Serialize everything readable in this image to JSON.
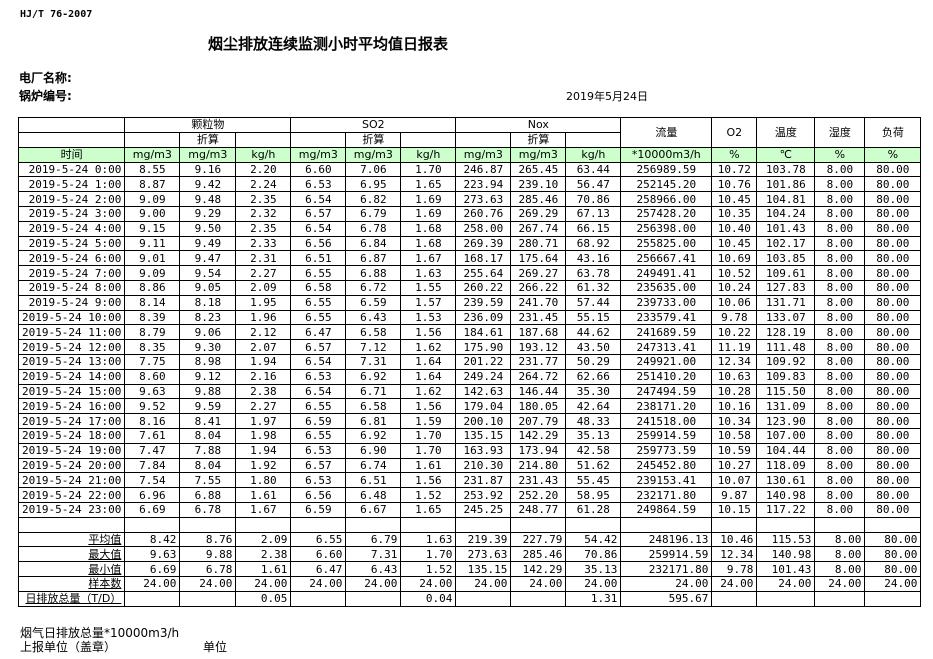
{
  "header": {
    "standard": "HJ/T  76-2007",
    "title": "烟尘排放连续监测小时平均值日报表",
    "plant_label": "电厂名称:",
    "boiler_label": "锅炉编号:",
    "date": "2019年5月24日"
  },
  "table": {
    "groups": {
      "particulate": "颗粒物",
      "so2": "SO2",
      "nox": "Nox",
      "flow": "流量",
      "o2": "O2",
      "temp": "温度",
      "humidity": "湿度",
      "load": "负荷"
    },
    "converted": "折算",
    "units": [
      "时间",
      "mg/m3",
      "mg/m3",
      "kg/h",
      "mg/m3",
      "mg/m3",
      "kg/h",
      "mg/m3",
      "mg/m3",
      "kg/h",
      "*10000m3/h",
      "%",
      "℃",
      "%",
      "%"
    ],
    "rows": [
      [
        "2019-5-24 0:00",
        "8.55",
        "9.16",
        "2.20",
        "6.60",
        "7.06",
        "1.70",
        "246.87",
        "265.45",
        "63.44",
        "256989.59",
        "10.72",
        "103.78",
        "8.00",
        "80.00"
      ],
      [
        "2019-5-24 1:00",
        "8.87",
        "9.42",
        "2.24",
        "6.53",
        "6.95",
        "1.65",
        "223.94",
        "239.10",
        "56.47",
        "252145.20",
        "10.76",
        "101.86",
        "8.00",
        "80.00"
      ],
      [
        "2019-5-24 2:00",
        "9.09",
        "9.48",
        "2.35",
        "6.54",
        "6.82",
        "1.69",
        "273.63",
        "285.46",
        "70.86",
        "258966.00",
        "10.45",
        "104.81",
        "8.00",
        "80.00"
      ],
      [
        "2019-5-24 3:00",
        "9.00",
        "9.29",
        "2.32",
        "6.57",
        "6.79",
        "1.69",
        "260.76",
        "269.29",
        "67.13",
        "257428.20",
        "10.35",
        "104.24",
        "8.00",
        "80.00"
      ],
      [
        "2019-5-24 4:00",
        "9.15",
        "9.50",
        "2.35",
        "6.54",
        "6.78",
        "1.68",
        "258.00",
        "267.74",
        "66.15",
        "256398.00",
        "10.40",
        "101.43",
        "8.00",
        "80.00"
      ],
      [
        "2019-5-24 5:00",
        "9.11",
        "9.49",
        "2.33",
        "6.56",
        "6.84",
        "1.68",
        "269.39",
        "280.71",
        "68.92",
        "255825.00",
        "10.45",
        "102.17",
        "8.00",
        "80.00"
      ],
      [
        "2019-5-24 6:00",
        "9.01",
        "9.47",
        "2.31",
        "6.51",
        "6.87",
        "1.67",
        "168.17",
        "175.64",
        "43.16",
        "256667.41",
        "10.69",
        "103.85",
        "8.00",
        "80.00"
      ],
      [
        "2019-5-24 7:00",
        "9.09",
        "9.54",
        "2.27",
        "6.55",
        "6.88",
        "1.63",
        "255.64",
        "269.27",
        "63.78",
        "249491.41",
        "10.52",
        "109.61",
        "8.00",
        "80.00"
      ],
      [
        "2019-5-24 8:00",
        "8.86",
        "9.05",
        "2.09",
        "6.58",
        "6.72",
        "1.55",
        "260.22",
        "266.22",
        "61.32",
        "235635.00",
        "10.24",
        "127.83",
        "8.00",
        "80.00"
      ],
      [
        "2019-5-24 9:00",
        "8.14",
        "8.18",
        "1.95",
        "6.55",
        "6.59",
        "1.57",
        "239.59",
        "241.70",
        "57.44",
        "239733.00",
        "10.06",
        "131.71",
        "8.00",
        "80.00"
      ],
      [
        "2019-5-24 10:00",
        "8.39",
        "8.23",
        "1.96",
        "6.55",
        "6.43",
        "1.53",
        "236.09",
        "231.45",
        "55.15",
        "233579.41",
        "9.78",
        "133.07",
        "8.00",
        "80.00"
      ],
      [
        "2019-5-24 11:00",
        "8.79",
        "9.06",
        "2.12",
        "6.47",
        "6.58",
        "1.56",
        "184.61",
        "187.68",
        "44.62",
        "241689.59",
        "10.22",
        "128.19",
        "8.00",
        "80.00"
      ],
      [
        "2019-5-24 12:00",
        "8.35",
        "9.30",
        "2.07",
        "6.57",
        "7.12",
        "1.62",
        "175.90",
        "193.12",
        "43.50",
        "247313.41",
        "11.19",
        "111.48",
        "8.00",
        "80.00"
      ],
      [
        "2019-5-24 13:00",
        "7.75",
        "8.98",
        "1.94",
        "6.54",
        "7.31",
        "1.64",
        "201.22",
        "231.77",
        "50.29",
        "249921.00",
        "12.34",
        "109.92",
        "8.00",
        "80.00"
      ],
      [
        "2019-5-24 14:00",
        "8.60",
        "9.12",
        "2.16",
        "6.53",
        "6.92",
        "1.64",
        "249.24",
        "264.72",
        "62.66",
        "251410.20",
        "10.63",
        "109.83",
        "8.00",
        "80.00"
      ],
      [
        "2019-5-24 15:00",
        "9.63",
        "9.88",
        "2.38",
        "6.54",
        "6.71",
        "1.62",
        "142.63",
        "146.44",
        "35.30",
        "247494.59",
        "10.28",
        "115.50",
        "8.00",
        "80.00"
      ],
      [
        "2019-5-24 16:00",
        "9.52",
        "9.59",
        "2.27",
        "6.55",
        "6.58",
        "1.56",
        "179.04",
        "180.05",
        "42.64",
        "238171.20",
        "10.16",
        "131.09",
        "8.00",
        "80.00"
      ],
      [
        "2019-5-24 17:00",
        "8.16",
        "8.41",
        "1.97",
        "6.59",
        "6.81",
        "1.59",
        "200.10",
        "207.79",
        "48.33",
        "241518.00",
        "10.34",
        "123.90",
        "8.00",
        "80.00"
      ],
      [
        "2019-5-24 18:00",
        "7.61",
        "8.04",
        "1.98",
        "6.55",
        "6.92",
        "1.70",
        "135.15",
        "142.29",
        "35.13",
        "259914.59",
        "10.58",
        "107.00",
        "8.00",
        "80.00"
      ],
      [
        "2019-5-24 19:00",
        "7.47",
        "7.88",
        "1.94",
        "6.53",
        "6.90",
        "1.70",
        "163.93",
        "173.94",
        "42.58",
        "259773.59",
        "10.59",
        "104.44",
        "8.00",
        "80.00"
      ],
      [
        "2019-5-24 20:00",
        "7.84",
        "8.04",
        "1.92",
        "6.57",
        "6.74",
        "1.61",
        "210.30",
        "214.80",
        "51.62",
        "245452.80",
        "10.27",
        "118.09",
        "8.00",
        "80.00"
      ],
      [
        "2019-5-24 21:00",
        "7.54",
        "7.55",
        "1.80",
        "6.53",
        "6.51",
        "1.56",
        "231.87",
        "231.43",
        "55.45",
        "239153.41",
        "10.07",
        "130.61",
        "8.00",
        "80.00"
      ],
      [
        "2019-5-24 22:00",
        "6.96",
        "6.88",
        "1.61",
        "6.56",
        "6.48",
        "1.52",
        "253.92",
        "252.20",
        "58.95",
        "232171.80",
        "9.87",
        "140.98",
        "8.00",
        "80.00"
      ],
      [
        "2019-5-24 23:00",
        "6.69",
        "6.78",
        "1.67",
        "6.59",
        "6.67",
        "1.65",
        "245.25",
        "248.77",
        "61.28",
        "249864.59",
        "10.15",
        "117.22",
        "8.00",
        "80.00"
      ]
    ],
    "stats": [
      [
        "平均值",
        "8.42",
        "8.76",
        "2.09",
        "6.55",
        "6.79",
        "1.63",
        "219.39",
        "227.79",
        "54.42",
        "248196.13",
        "10.46",
        "115.53",
        "8.00",
        "80.00"
      ],
      [
        "最大值",
        "9.63",
        "9.88",
        "2.38",
        "6.60",
        "7.31",
        "1.70",
        "273.63",
        "285.46",
        "70.86",
        "259914.59",
        "12.34",
        "140.98",
        "8.00",
        "80.00"
      ],
      [
        "最小值",
        "6.69",
        "6.78",
        "1.61",
        "6.47",
        "6.43",
        "1.52",
        "135.15",
        "142.29",
        "35.13",
        "232171.80",
        "9.78",
        "101.43",
        "8.00",
        "80.00"
      ],
      [
        "样本数",
        "24.00",
        "24.00",
        "24.00",
        "24.00",
        "24.00",
        "24.00",
        "24.00",
        "24.00",
        "24.00",
        "24.00",
        "24.00",
        "24.00",
        "24.00",
        "24.00"
      ],
      [
        "日排放总量（T/D）",
        "",
        "",
        "0.05",
        "",
        "",
        "0.04",
        "",
        "",
        "1.31",
        "595.67",
        "",
        "",
        "",
        ""
      ]
    ]
  },
  "footer": {
    "flue_gas_total": "烟气日排放总量*10000m3/h",
    "reporting_unit": "上报单位（盖章）",
    "unit": "单位"
  }
}
